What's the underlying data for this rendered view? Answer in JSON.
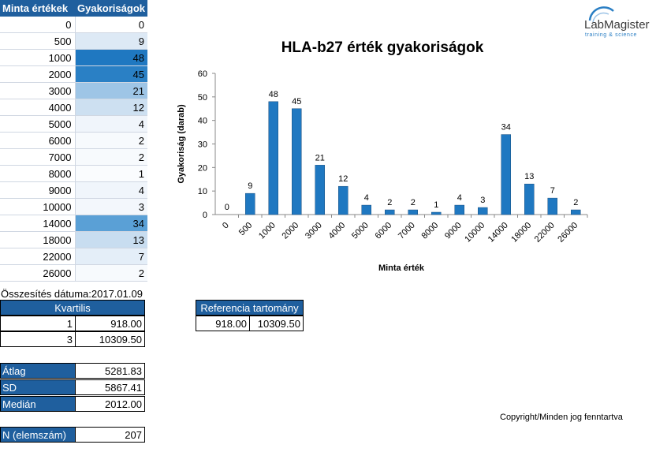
{
  "table": {
    "headers": [
      "Minta értékek",
      "Gyakoriságok"
    ],
    "rows": [
      {
        "value": "0",
        "count": "0",
        "bg": "#ffffff"
      },
      {
        "value": "500",
        "count": "9",
        "bg": "#dde9f5"
      },
      {
        "value": "1000",
        "count": "48",
        "bg": "#1f78c1"
      },
      {
        "value": "2000",
        "count": "45",
        "bg": "#2a80c5"
      },
      {
        "value": "3000",
        "count": "21",
        "bg": "#9ec5e6"
      },
      {
        "value": "4000",
        "count": "12",
        "bg": "#cde0f1"
      },
      {
        "value": "5000",
        "count": "4",
        "bg": "#f0f5fb"
      },
      {
        "value": "6000",
        "count": "2",
        "bg": "#f7fafd"
      },
      {
        "value": "7000",
        "count": "2",
        "bg": "#f7fafd"
      },
      {
        "value": "8000",
        "count": "1",
        "bg": "#fafcfe"
      },
      {
        "value": "9000",
        "count": "4",
        "bg": "#f0f5fb"
      },
      {
        "value": "10000",
        "count": "3",
        "bg": "#f3f7fc"
      },
      {
        "value": "14000",
        "count": "34",
        "bg": "#5aa0d6"
      },
      {
        "value": "18000",
        "count": "13",
        "bg": "#c8ddf0"
      },
      {
        "value": "22000",
        "count": "7",
        "bg": "#e4eef8"
      },
      {
        "value": "26000",
        "count": "2",
        "bg": "#f7fafd"
      }
    ]
  },
  "summary": {
    "date_label": "Összesítés dátuma:2017.01.09",
    "quartile_header": "Kvartilis",
    "quartiles": [
      {
        "n": "1",
        "value": "918.00"
      },
      {
        "n": "3",
        "value": "10309.50"
      }
    ],
    "reference_header": "Referencia tartomány",
    "reference": [
      "918.00",
      "10309.50"
    ],
    "stats": [
      {
        "label": "Átlag",
        "value": "5281.83"
      },
      {
        "label": "SD",
        "value": "5867.41"
      },
      {
        "label": "Medián",
        "value": "2012.00"
      }
    ],
    "n_label": "N (elemszám)",
    "n_value": "207"
  },
  "logo": {
    "name": "LabMagister",
    "tagline": "training & science"
  },
  "copyright": "Copyright/Minden jog fenntartva",
  "colors": {
    "bar": "#1f78c1",
    "header": "#1f5f9e"
  },
  "chart_data": {
    "type": "bar",
    "title": "HLA-b27 érték gyakoriságok",
    "xlabel": "Minta érték",
    "ylabel": "Gyakoriság (darab)",
    "categories": [
      "0",
      "500",
      "1000",
      "2000",
      "3000",
      "4000",
      "5000",
      "6000",
      "7000",
      "8000",
      "9000",
      "10000",
      "14000",
      "18000",
      "22000",
      "26000"
    ],
    "values": [
      0,
      9,
      48,
      45,
      21,
      12,
      4,
      2,
      2,
      1,
      4,
      3,
      34,
      13,
      7,
      2
    ],
    "ylim": [
      0,
      60
    ],
    "yticks": [
      0,
      10,
      20,
      30,
      40,
      50,
      60
    ],
    "data_labels": true,
    "grid": false
  }
}
